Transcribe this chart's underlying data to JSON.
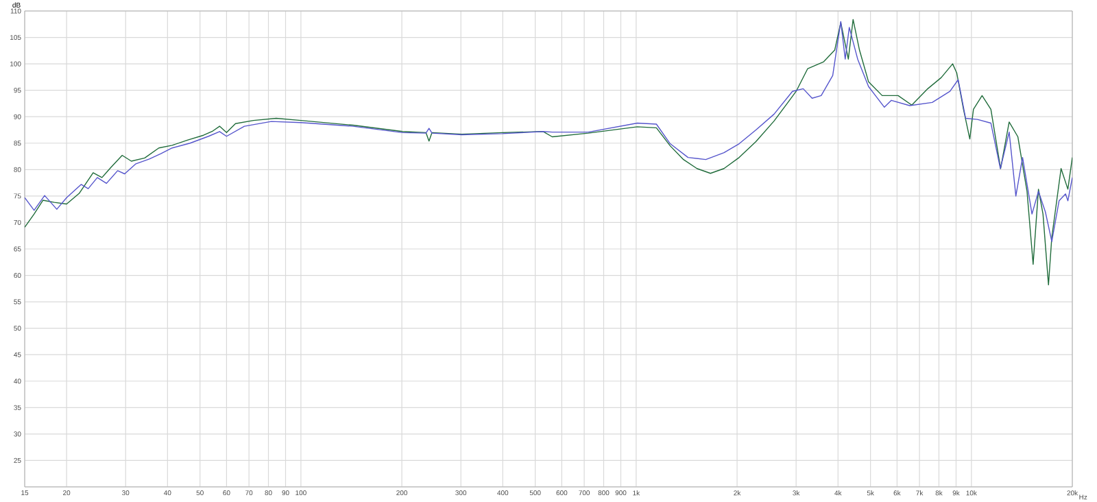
{
  "chart_data": {
    "type": "line",
    "ylabel": "dB",
    "log": "x",
    "grid": true,
    "xlim": [
      15,
      20000
    ],
    "ylim": [
      20,
      110
    ],
    "xticks": [
      {
        "value": 15,
        "label": "15"
      },
      {
        "value": 20,
        "label": "20"
      },
      {
        "value": 30,
        "label": "30"
      },
      {
        "value": 40,
        "label": "40"
      },
      {
        "value": 50,
        "label": "50"
      },
      {
        "value": 60,
        "label": "60"
      },
      {
        "value": 70,
        "label": "70"
      },
      {
        "value": 80,
        "label": "80"
      },
      {
        "value": 90,
        "label": "90"
      },
      {
        "value": 100,
        "label": "100"
      },
      {
        "value": 200,
        "label": "200"
      },
      {
        "value": 300,
        "label": "300"
      },
      {
        "value": 400,
        "label": "400"
      },
      {
        "value": 500,
        "label": "500"
      },
      {
        "value": 600,
        "label": "600"
      },
      {
        "value": 700,
        "label": "700"
      },
      {
        "value": 800,
        "label": "800"
      },
      {
        "value": 900,
        "label": "900"
      },
      {
        "value": 1000,
        "label": "1k"
      },
      {
        "value": 2000,
        "label": "2k"
      },
      {
        "value": 3000,
        "label": "3k"
      },
      {
        "value": 4000,
        "label": "4k"
      },
      {
        "value": 5000,
        "label": "5k"
      },
      {
        "value": 6000,
        "label": "6k"
      },
      {
        "value": 7000,
        "label": "7k"
      },
      {
        "value": 8000,
        "label": "8k"
      },
      {
        "value": 9000,
        "label": "9k"
      },
      {
        "value": 10000,
        "label": "10k"
      },
      {
        "value": 20000,
        "label": "20k"
      }
    ],
    "xlabel": "Hz",
    "yticks": [
      {
        "value": 20,
        "label": null
      },
      25,
      30,
      35,
      40,
      45,
      50,
      55,
      60,
      65,
      70,
      75,
      80,
      85,
      90,
      95,
      100,
      105,
      110
    ],
    "series": [
      {
        "color": "#1f6b3a",
        "x": [
          15,
          16,
          17,
          18.4,
          20,
          21.8,
          24,
          25.5,
          27.1,
          29.3,
          31.2,
          34.2,
          37.7,
          41.3,
          46,
          51.2,
          54.6,
          57.2,
          60,
          63.8,
          72.2,
          84.4,
          100,
          143,
          201,
          236,
          241,
          246,
          302,
          399,
          528,
          562,
          720,
          1008,
          1149,
          1263,
          1384,
          1518,
          1666,
          1828,
          2029,
          2276,
          2579,
          2836,
          3000,
          3249,
          3625,
          3911,
          4077,
          4294,
          4437,
          4636,
          4934,
          5418,
          6044,
          6640,
          7410,
          8128,
          8790,
          9040,
          9470,
          9890,
          10140,
          10760,
          11430,
          12220,
          12960,
          13760,
          14650,
          15280,
          15850,
          16350,
          16980,
          17370,
          18510,
          19400,
          20000
        ],
        "values": [
          69.1,
          71.6,
          74.2,
          73.8,
          73.5,
          75.5,
          79.4,
          78.5,
          80.4,
          82.7,
          81.6,
          82.2,
          84.1,
          84.6,
          85.6,
          86.5,
          87.3,
          88.2,
          87,
          88.7,
          89.3,
          89.7,
          89.3,
          88.4,
          87.2,
          87,
          85.4,
          87,
          86.7,
          87,
          87.2,
          86.2,
          86.9,
          88.1,
          87.9,
          84.5,
          81.9,
          80.2,
          79.3,
          80.2,
          82.3,
          85.3,
          89.2,
          92.7,
          94.8,
          99.1,
          100.4,
          102.6,
          107.8,
          100.9,
          108.4,
          102.6,
          96.6,
          94,
          94,
          92.2,
          95.3,
          97.4,
          100,
          98.3,
          91.4,
          85.8,
          91.4,
          94,
          91.4,
          80.2,
          89,
          86.2,
          75.9,
          62.1,
          76.3,
          71.6,
          58.2,
          67.2,
          80.2,
          76.3,
          82.3
        ]
      },
      {
        "color": "#5555cc",
        "x": [
          15,
          16,
          17.2,
          18.7,
          20,
          22.1,
          23.2,
          24.7,
          26.3,
          28.4,
          29.8,
          32.2,
          35.3,
          38.2,
          41.3,
          46.7,
          53,
          57.2,
          60,
          67.8,
          81.6,
          100,
          143,
          201,
          236,
          241,
          246,
          302,
          399,
          528,
          562,
          720,
          1008,
          1149,
          1263,
          1428,
          1613,
          1828,
          2029,
          2276,
          2579,
          2925,
          3150,
          3348,
          3564,
          3858,
          4077,
          4203,
          4322,
          4578,
          4934,
          5500,
          5771,
          6545,
          7640,
          8630,
          9130,
          9610,
          10420,
          11430,
          12200,
          12960,
          13570,
          14210,
          15160,
          15850,
          16620,
          17370,
          18260,
          19090,
          19400,
          20000
        ],
        "values": [
          74.7,
          72.3,
          75.1,
          72.5,
          74.7,
          77.2,
          76.4,
          78.5,
          77.4,
          79.8,
          79.2,
          81.1,
          82,
          83,
          84.1,
          85,
          86.3,
          87.2,
          86.3,
          88.2,
          89.1,
          88.9,
          88.2,
          87,
          86.9,
          87.8,
          86.9,
          86.6,
          86.8,
          87.2,
          87.1,
          87.1,
          88.8,
          88.6,
          84.9,
          82.3,
          81.9,
          83.2,
          84.9,
          87.5,
          90.5,
          94.8,
          95.3,
          93.5,
          94,
          97.8,
          108,
          100.9,
          106.9,
          100.9,
          95.7,
          91.8,
          93.1,
          92.1,
          92.7,
          94.8,
          97,
          89.7,
          89.5,
          88.8,
          80.2,
          87.1,
          75,
          82.3,
          71.6,
          75.9,
          72,
          66.4,
          74.1,
          75.4,
          74.1,
          78.5
        ]
      }
    ]
  }
}
